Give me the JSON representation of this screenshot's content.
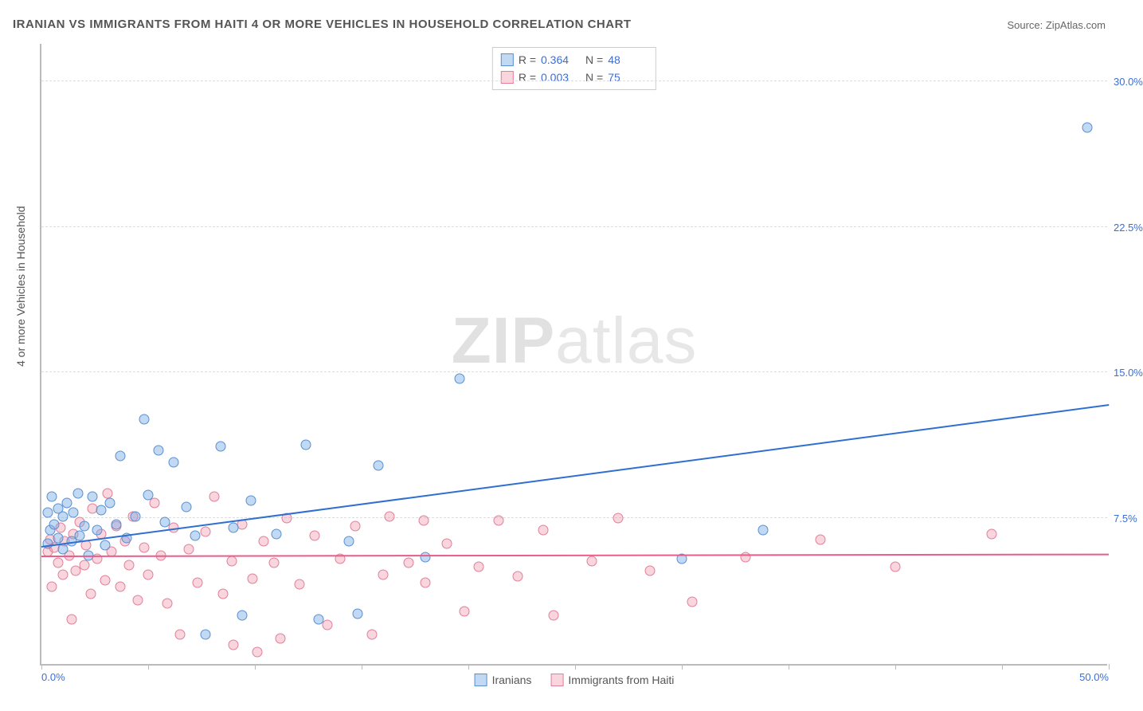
{
  "title": "IRANIAN VS IMMIGRANTS FROM HAITI 4 OR MORE VEHICLES IN HOUSEHOLD CORRELATION CHART",
  "source": "Source: ZipAtlas.com",
  "ylabel": "4 or more Vehicles in Household",
  "watermark_bold": "ZIP",
  "watermark_light": "atlas",
  "chart": {
    "type": "scatter",
    "background_color": "#ffffff",
    "grid_color": "#dddddd",
    "axis_color": "#bbbbbb",
    "xlim": [
      0,
      50
    ],
    "ylim": [
      0,
      32
    ],
    "xtick_positions": [
      0,
      5,
      10,
      15,
      20,
      25,
      30,
      35,
      40,
      45,
      50
    ],
    "xtick_labels": {
      "0": "0.0%",
      "50": "50.0%"
    },
    "ytick_positions": [
      7.5,
      15.0,
      22.5,
      30.0
    ],
    "ytick_labels": [
      "7.5%",
      "15.0%",
      "22.5%",
      "30.0%"
    ],
    "label_color": "#3b6fd6",
    "label_fontsize": 13,
    "marker_radius": 6.5,
    "series": [
      {
        "name": "Iranians",
        "fill": "rgba(120,170,230,0.45)",
        "stroke": "#5a8fd0",
        "line_color": "#2f6fd0",
        "R": "0.364",
        "N": "48",
        "trend": {
          "x1": 0,
          "y1": 6.0,
          "x2": 50,
          "y2": 13.3
        },
        "points": [
          [
            0.3,
            6.2
          ],
          [
            0.3,
            7.8
          ],
          [
            0.4,
            6.9
          ],
          [
            0.5,
            8.6
          ],
          [
            0.6,
            7.2
          ],
          [
            0.8,
            6.5
          ],
          [
            0.8,
            8.0
          ],
          [
            1.0,
            5.9
          ],
          [
            1.0,
            7.6
          ],
          [
            1.2,
            8.3
          ],
          [
            1.4,
            6.3
          ],
          [
            1.5,
            7.8
          ],
          [
            1.7,
            8.8
          ],
          [
            1.8,
            6.6
          ],
          [
            2.0,
            7.1
          ],
          [
            2.2,
            5.6
          ],
          [
            2.4,
            8.6
          ],
          [
            2.6,
            6.9
          ],
          [
            2.8,
            7.9
          ],
          [
            3.0,
            6.1
          ],
          [
            3.2,
            8.3
          ],
          [
            3.5,
            7.2
          ],
          [
            3.7,
            10.7
          ],
          [
            4.0,
            6.5
          ],
          [
            4.4,
            7.6
          ],
          [
            4.8,
            12.6
          ],
          [
            5.0,
            8.7
          ],
          [
            5.5,
            11.0
          ],
          [
            5.8,
            7.3
          ],
          [
            6.2,
            10.4
          ],
          [
            6.8,
            8.1
          ],
          [
            7.2,
            6.6
          ],
          [
            7.7,
            1.5
          ],
          [
            8.4,
            11.2
          ],
          [
            9.0,
            7.0
          ],
          [
            9.4,
            2.5
          ],
          [
            9.8,
            8.4
          ],
          [
            11.0,
            6.7
          ],
          [
            12.4,
            11.3
          ],
          [
            13.0,
            2.3
          ],
          [
            14.4,
            6.3
          ],
          [
            14.8,
            2.6
          ],
          [
            15.8,
            10.2
          ],
          [
            18.0,
            5.5
          ],
          [
            19.6,
            14.7
          ],
          [
            30.0,
            5.4
          ],
          [
            33.8,
            6.9
          ],
          [
            49.0,
            27.6
          ]
        ]
      },
      {
        "name": "Immigrants from Haiti",
        "fill": "rgba(240,150,170,0.40)",
        "stroke": "#e07f9a",
        "line_color": "#e85d8a",
        "R": "0.003",
        "N": "75",
        "trend": {
          "x1": 0,
          "y1": 5.5,
          "x2": 50,
          "y2": 5.6
        },
        "points": [
          [
            0.3,
            5.8
          ],
          [
            0.4,
            6.4
          ],
          [
            0.5,
            4.0
          ],
          [
            0.6,
            6.0
          ],
          [
            0.8,
            5.2
          ],
          [
            0.9,
            7.0
          ],
          [
            1.0,
            4.6
          ],
          [
            1.1,
            6.3
          ],
          [
            1.3,
            5.6
          ],
          [
            1.4,
            2.3
          ],
          [
            1.5,
            6.7
          ],
          [
            1.6,
            4.8
          ],
          [
            1.8,
            7.3
          ],
          [
            2.0,
            5.1
          ],
          [
            2.1,
            6.1
          ],
          [
            2.3,
            3.6
          ],
          [
            2.4,
            8.0
          ],
          [
            2.6,
            5.4
          ],
          [
            2.8,
            6.7
          ],
          [
            3.0,
            4.3
          ],
          [
            3.1,
            8.8
          ],
          [
            3.3,
            5.8
          ],
          [
            3.5,
            7.1
          ],
          [
            3.7,
            4.0
          ],
          [
            3.9,
            6.3
          ],
          [
            4.1,
            5.1
          ],
          [
            4.3,
            7.6
          ],
          [
            4.5,
            3.3
          ],
          [
            4.8,
            6.0
          ],
          [
            5.0,
            4.6
          ],
          [
            5.3,
            8.3
          ],
          [
            5.6,
            5.6
          ],
          [
            5.9,
            3.1
          ],
          [
            6.2,
            7.0
          ],
          [
            6.5,
            1.5
          ],
          [
            6.9,
            5.9
          ],
          [
            7.3,
            4.2
          ],
          [
            7.7,
            6.8
          ],
          [
            8.1,
            8.6
          ],
          [
            8.5,
            3.6
          ],
          [
            8.9,
            5.3
          ],
          [
            9.0,
            1.0
          ],
          [
            9.4,
            7.2
          ],
          [
            9.9,
            4.4
          ],
          [
            10.1,
            0.6
          ],
          [
            10.4,
            6.3
          ],
          [
            10.9,
            5.2
          ],
          [
            11.2,
            1.3
          ],
          [
            11.5,
            7.5
          ],
          [
            12.1,
            4.1
          ],
          [
            12.8,
            6.6
          ],
          [
            13.4,
            2.0
          ],
          [
            14.0,
            5.4
          ],
          [
            14.7,
            7.1
          ],
          [
            15.5,
            1.5
          ],
          [
            16.0,
            4.6
          ],
          [
            16.3,
            7.6
          ],
          [
            17.2,
            5.2
          ],
          [
            17.9,
            7.4
          ],
          [
            18.0,
            4.2
          ],
          [
            19.0,
            6.2
          ],
          [
            19.8,
            2.7
          ],
          [
            20.5,
            5.0
          ],
          [
            21.4,
            7.4
          ],
          [
            22.3,
            4.5
          ],
          [
            23.5,
            6.9
          ],
          [
            24.0,
            2.5
          ],
          [
            25.8,
            5.3
          ],
          [
            27.0,
            7.5
          ],
          [
            28.5,
            4.8
          ],
          [
            30.5,
            3.2
          ],
          [
            33.0,
            5.5
          ],
          [
            36.5,
            6.4
          ],
          [
            40.0,
            5.0
          ],
          [
            44.5,
            6.7
          ]
        ]
      }
    ]
  },
  "legend_top_label_R": "R  =",
  "legend_top_label_N": "N  ="
}
